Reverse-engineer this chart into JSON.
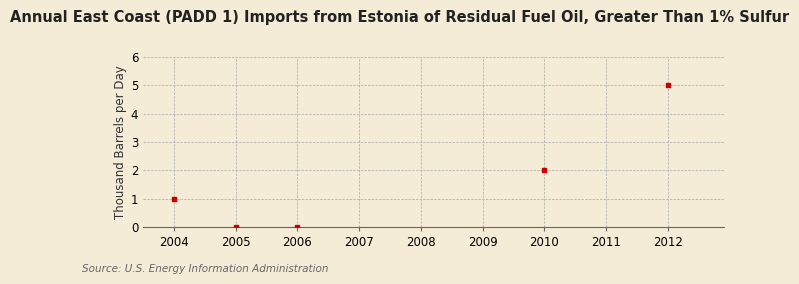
{
  "title": "Annual East Coast (PADD 1) Imports from Estonia of Residual Fuel Oil, Greater Than 1% Sulfur",
  "ylabel": "Thousand Barrels per Day",
  "source": "Source: U.S. Energy Information Administration",
  "background_color": "#f5ecd7",
  "data_years": [
    2004,
    2005,
    2006,
    2010,
    2012
  ],
  "data_values": [
    1.0,
    0.02,
    0.02,
    2.0,
    5.0
  ],
  "point_color": "#cc0000",
  "xlim": [
    2003.5,
    2012.9
  ],
  "ylim": [
    0,
    6
  ],
  "xticks": [
    2004,
    2005,
    2006,
    2007,
    2008,
    2009,
    2010,
    2011,
    2012
  ],
  "yticks": [
    0,
    1,
    2,
    3,
    4,
    5,
    6
  ],
  "title_fontsize": 10.5,
  "label_fontsize": 8.5,
  "tick_fontsize": 8.5,
  "source_fontsize": 7.5
}
